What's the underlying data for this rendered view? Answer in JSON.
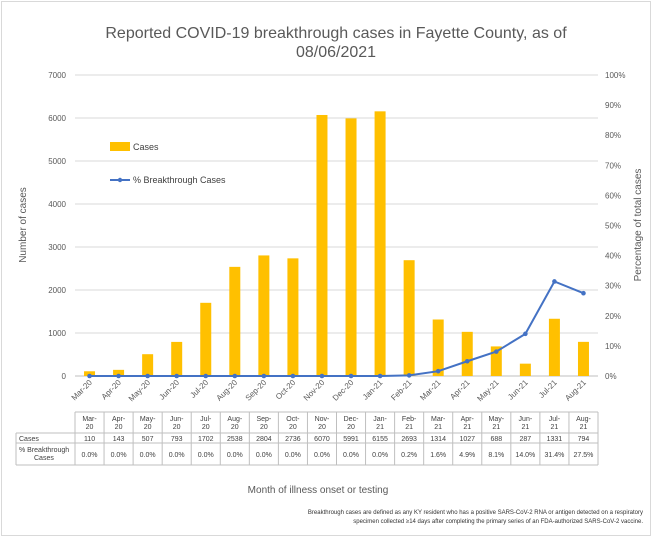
{
  "chart_data": {
    "type": "bar",
    "title_line1": "Reported COVID-19 breakthrough cases in Fayette County, as of",
    "title_line2": "08/06/2021",
    "xlabel": "Month of illness onset or testing",
    "ylabel": "Number of cases",
    "y2label": "Percentage of total cases",
    "ylim": [
      0,
      7000
    ],
    "yticks": [
      "0",
      "1000",
      "2000",
      "3000",
      "4000",
      "5000",
      "6000",
      "7000"
    ],
    "y2lim": [
      0,
      100
    ],
    "y2ticks": [
      "0%",
      "10%",
      "20%",
      "30%",
      "40%",
      "50%",
      "60%",
      "70%",
      "80%",
      "90%",
      "100%"
    ],
    "categories": [
      "Mar-20",
      "Apr-20",
      "May-20",
      "Jun-20",
      "Jul-20",
      "Aug-20",
      "Sep-20",
      "Oct-20",
      "Nov-20",
      "Dec-20",
      "Jan-21",
      "Feb-21",
      "Mar-21",
      "Apr-21",
      "May-21",
      "Jun-21",
      "Jul-21",
      "Aug-21"
    ],
    "legend_position": "left-inside",
    "series": [
      {
        "name": "Cases",
        "kind": "bar",
        "color": "#FFC000",
        "values": [
          110,
          143,
          507,
          793,
          1702,
          2538,
          2804,
          2736,
          6070,
          5991,
          6155,
          2693,
          1314,
          1027,
          688,
          287,
          1331,
          794
        ],
        "labels": [
          "110",
          "143",
          "507",
          "793",
          "1702",
          "2538",
          "2804",
          "2736",
          "6070",
          "5991",
          "6155",
          "2693",
          "1314",
          "1027",
          "688",
          "287",
          "1331",
          "794"
        ]
      },
      {
        "name": "% Breakthrough Cases",
        "kind": "line",
        "axis": "secondary",
        "color": "#4472C4",
        "values": [
          0.0,
          0.0,
          0.0,
          0.0,
          0.0,
          0.0,
          0.0,
          0.0,
          0.0,
          0.0,
          0.0,
          0.2,
          1.6,
          4.9,
          8.1,
          14.0,
          31.4,
          27.5
        ],
        "labels": [
          "0.0%",
          "0.0%",
          "0.0%",
          "0.0%",
          "0.0%",
          "0.0%",
          "0.0%",
          "0.0%",
          "0.0%",
          "0.0%",
          "0.0%",
          "0.2%",
          "1.6%",
          "4.9%",
          "8.1%",
          "14.0%",
          "31.4%",
          "27.5%"
        ]
      }
    ],
    "table_row_labels": {
      "cases": "Cases",
      "pct_line1": "% Breakthrough",
      "pct_line2": "Cases"
    },
    "footnote_line1": "Breakthrough cases are defined as any KY resident who has a positive SARS-CoV-2 RNA or antigen detected on a respiratory",
    "footnote_line2": "specimen collected ≥14 days after completing the primary series of an FDA-authorized SARS-CoV-2 vaccine."
  }
}
